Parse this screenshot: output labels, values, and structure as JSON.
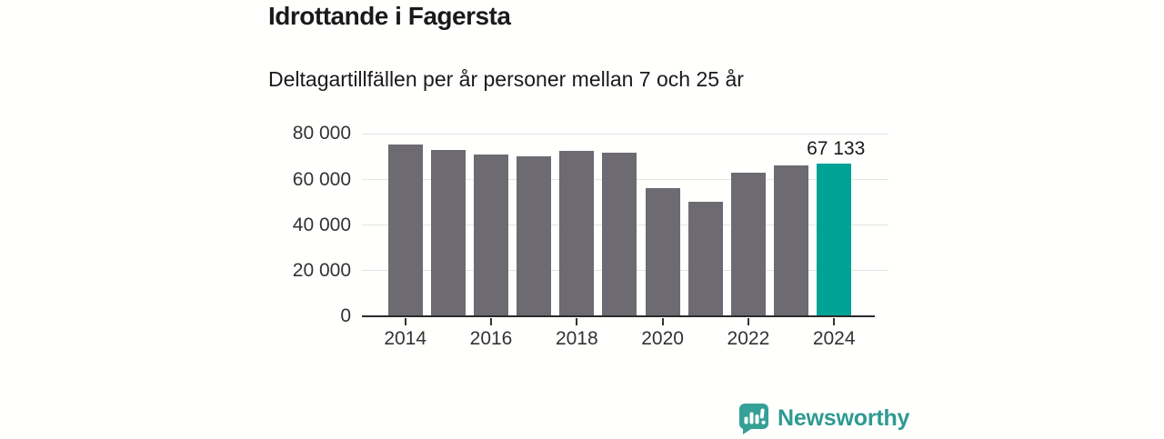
{
  "header": {
    "title": "Idrottande i Fagersta",
    "subtitle": "Deltagartillfällen per år personer mellan 7 och 25 år"
  },
  "footer": {
    "brand": "Newsworthy"
  },
  "colors": {
    "bar": "#6d6a72",
    "highlight": "#00a296",
    "grid": "#e4e4e4",
    "axis": "#2b2b2b",
    "tick_text": "#333333",
    "title_text": "#1a1a1a",
    "brand_teal": "#2f9a92",
    "logo_teal": "#35a096",
    "background": "#fffffe"
  },
  "chart_data": {
    "type": "bar",
    "title": "Idrottande i Fagersta",
    "subtitle": "Deltagartillfällen per år personer mellan 7 och 25 år",
    "x": [
      2014,
      2015,
      2016,
      2017,
      2018,
      2019,
      2020,
      2021,
      2022,
      2023,
      2024
    ],
    "values": [
      75200,
      73100,
      71000,
      70200,
      72700,
      71600,
      56200,
      50100,
      62900,
      66300,
      67133
    ],
    "highlight_index": 10,
    "highlight_label": "67 133",
    "ylim": [
      0,
      80000
    ],
    "yticks": [
      0,
      20000,
      40000,
      60000,
      80000
    ],
    "ytick_labels": [
      "0",
      "20 000",
      "40 000",
      "60 000",
      "80 000"
    ],
    "xticks": [
      2014,
      2016,
      2018,
      2020,
      2022,
      2024
    ],
    "xtick_labels": [
      "2014",
      "2016",
      "2018",
      "2020",
      "2022",
      "2024"
    ],
    "grid": true,
    "legend": "none",
    "bar_color": "#6d6a72",
    "highlight_color": "#00a296"
  }
}
